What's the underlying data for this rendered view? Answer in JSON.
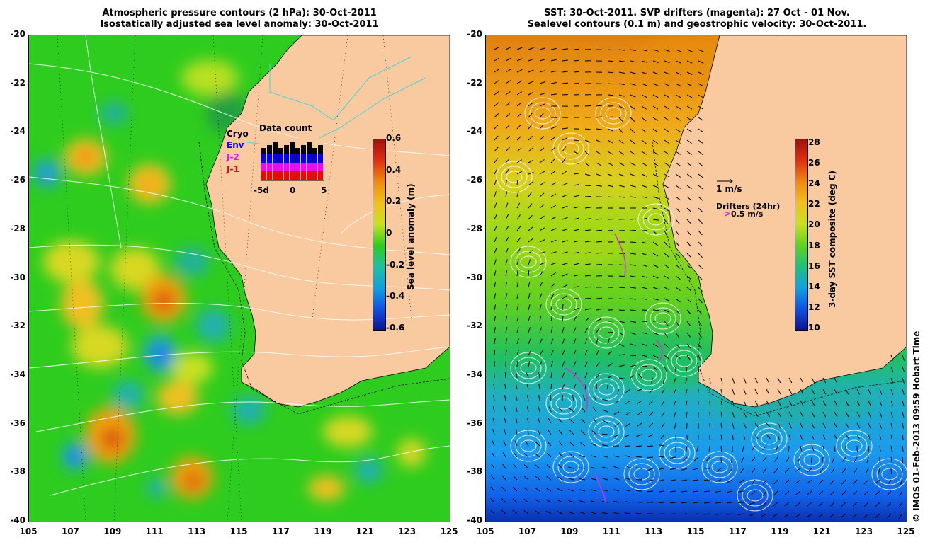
{
  "left_panel": {
    "title_line1": "Atmospheric pressure contours (2 hPa): 30-Oct-2011",
    "title_line2": "Isostatically adjusted sea level anomaly: 30-Oct-2011",
    "legend": {
      "title": "Data count",
      "items": [
        {
          "label": "Cryo",
          "color": "#000000"
        },
        {
          "label": "Env",
          "color": "#0000ff"
        },
        {
          "label": "J-2",
          "color": "#ff00ff"
        },
        {
          "label": "J-1",
          "color": "#ff0000"
        }
      ],
      "axis_labels": [
        "-5d",
        "0",
        "5"
      ]
    },
    "colorbar": {
      "title": "Sea level anomaly (m)",
      "ticks": [
        "0.6",
        "0.4",
        "0.2",
        "0",
        "-0.2",
        "-0.4",
        "-0.6"
      ]
    }
  },
  "right_panel": {
    "title_line1": "SST: 30-Oct-2011. SVP drifters (magenta): 27 Oct - 01 Nov.",
    "title_line2": "Sealevel contours (0.1 m) and geostrophic velocity: 30-Oct-2011.",
    "velocity_scale_label": "1 m/s",
    "drifter_legend_title": "Drifters (24hr)",
    "drifter_scale_label": "0.5 m/s",
    "colorbar": {
      "title": "3-day SST composite (deg C)",
      "ticks": [
        "28",
        "26",
        "24",
        "22",
        "20",
        "18",
        "16",
        "14",
        "12",
        "10"
      ]
    }
  },
  "axes": {
    "y_ticks": [
      "-20",
      "-22",
      "-24",
      "-26",
      "-28",
      "-30",
      "-32",
      "-34",
      "-36",
      "-38",
      "-40"
    ],
    "x_ticks": [
      "105",
      "107",
      "109",
      "111",
      "113",
      "115",
      "117",
      "119",
      "121",
      "123",
      "125"
    ]
  },
  "credit": "© IMOS 01-Feb-2013 09:59 Hobart Time",
  "colors": {
    "land": "#f9c9a0",
    "sla_background": "#2ecc1e",
    "sst_warm": "#f0a010",
    "sst_mid": "#7fd81e",
    "sst_cool": "#1e8cff",
    "drifter": "#d030d0"
  }
}
